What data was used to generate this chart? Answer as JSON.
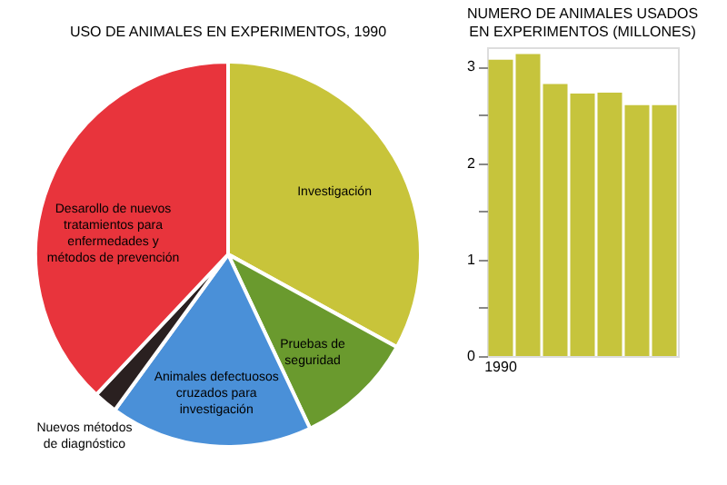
{
  "chart_data": [
    {
      "type": "pie",
      "title": "USO DE ANIMALES EN EXPERIMENTOS, 1990",
      "categories": [
        "Investigación",
        "Pruebas de\nseguridad",
        "Animales defectuosos\ncruzados para\ninvestigación",
        "Nuevos métodos\nde diagnóstico",
        "Desarollo de nuevos\ntratamientos para\nenfermedades y\nmétodos de prevención"
      ],
      "values": [
        33,
        10,
        17,
        2,
        38
      ],
      "colors": [
        "#c8c43a",
        "#6a9a2e",
        "#4a90d8",
        "#2a2020",
        "#e8343c"
      ]
    },
    {
      "type": "bar",
      "title": "NUMERO DE ANIMALES USADOS\nEN EXPERIMENTOS (MILLONES)",
      "categories": [
        "1990",
        null,
        null,
        null,
        null,
        null,
        null
      ],
      "series": [
        {
          "color": "#c6c43c",
          "values": [
            3.07,
            3.13,
            2.82,
            2.72,
            2.73,
            2.6,
            2.6
          ]
        }
      ],
      "ylim": [
        0,
        3.2
      ],
      "yticks": [
        0,
        {
          "value": 0.5,
          "label": null
        },
        1,
        {
          "value": 1.5,
          "label": null
        },
        2,
        {
          "value": 2.5,
          "label": null
        },
        3
      ]
    }
  ]
}
